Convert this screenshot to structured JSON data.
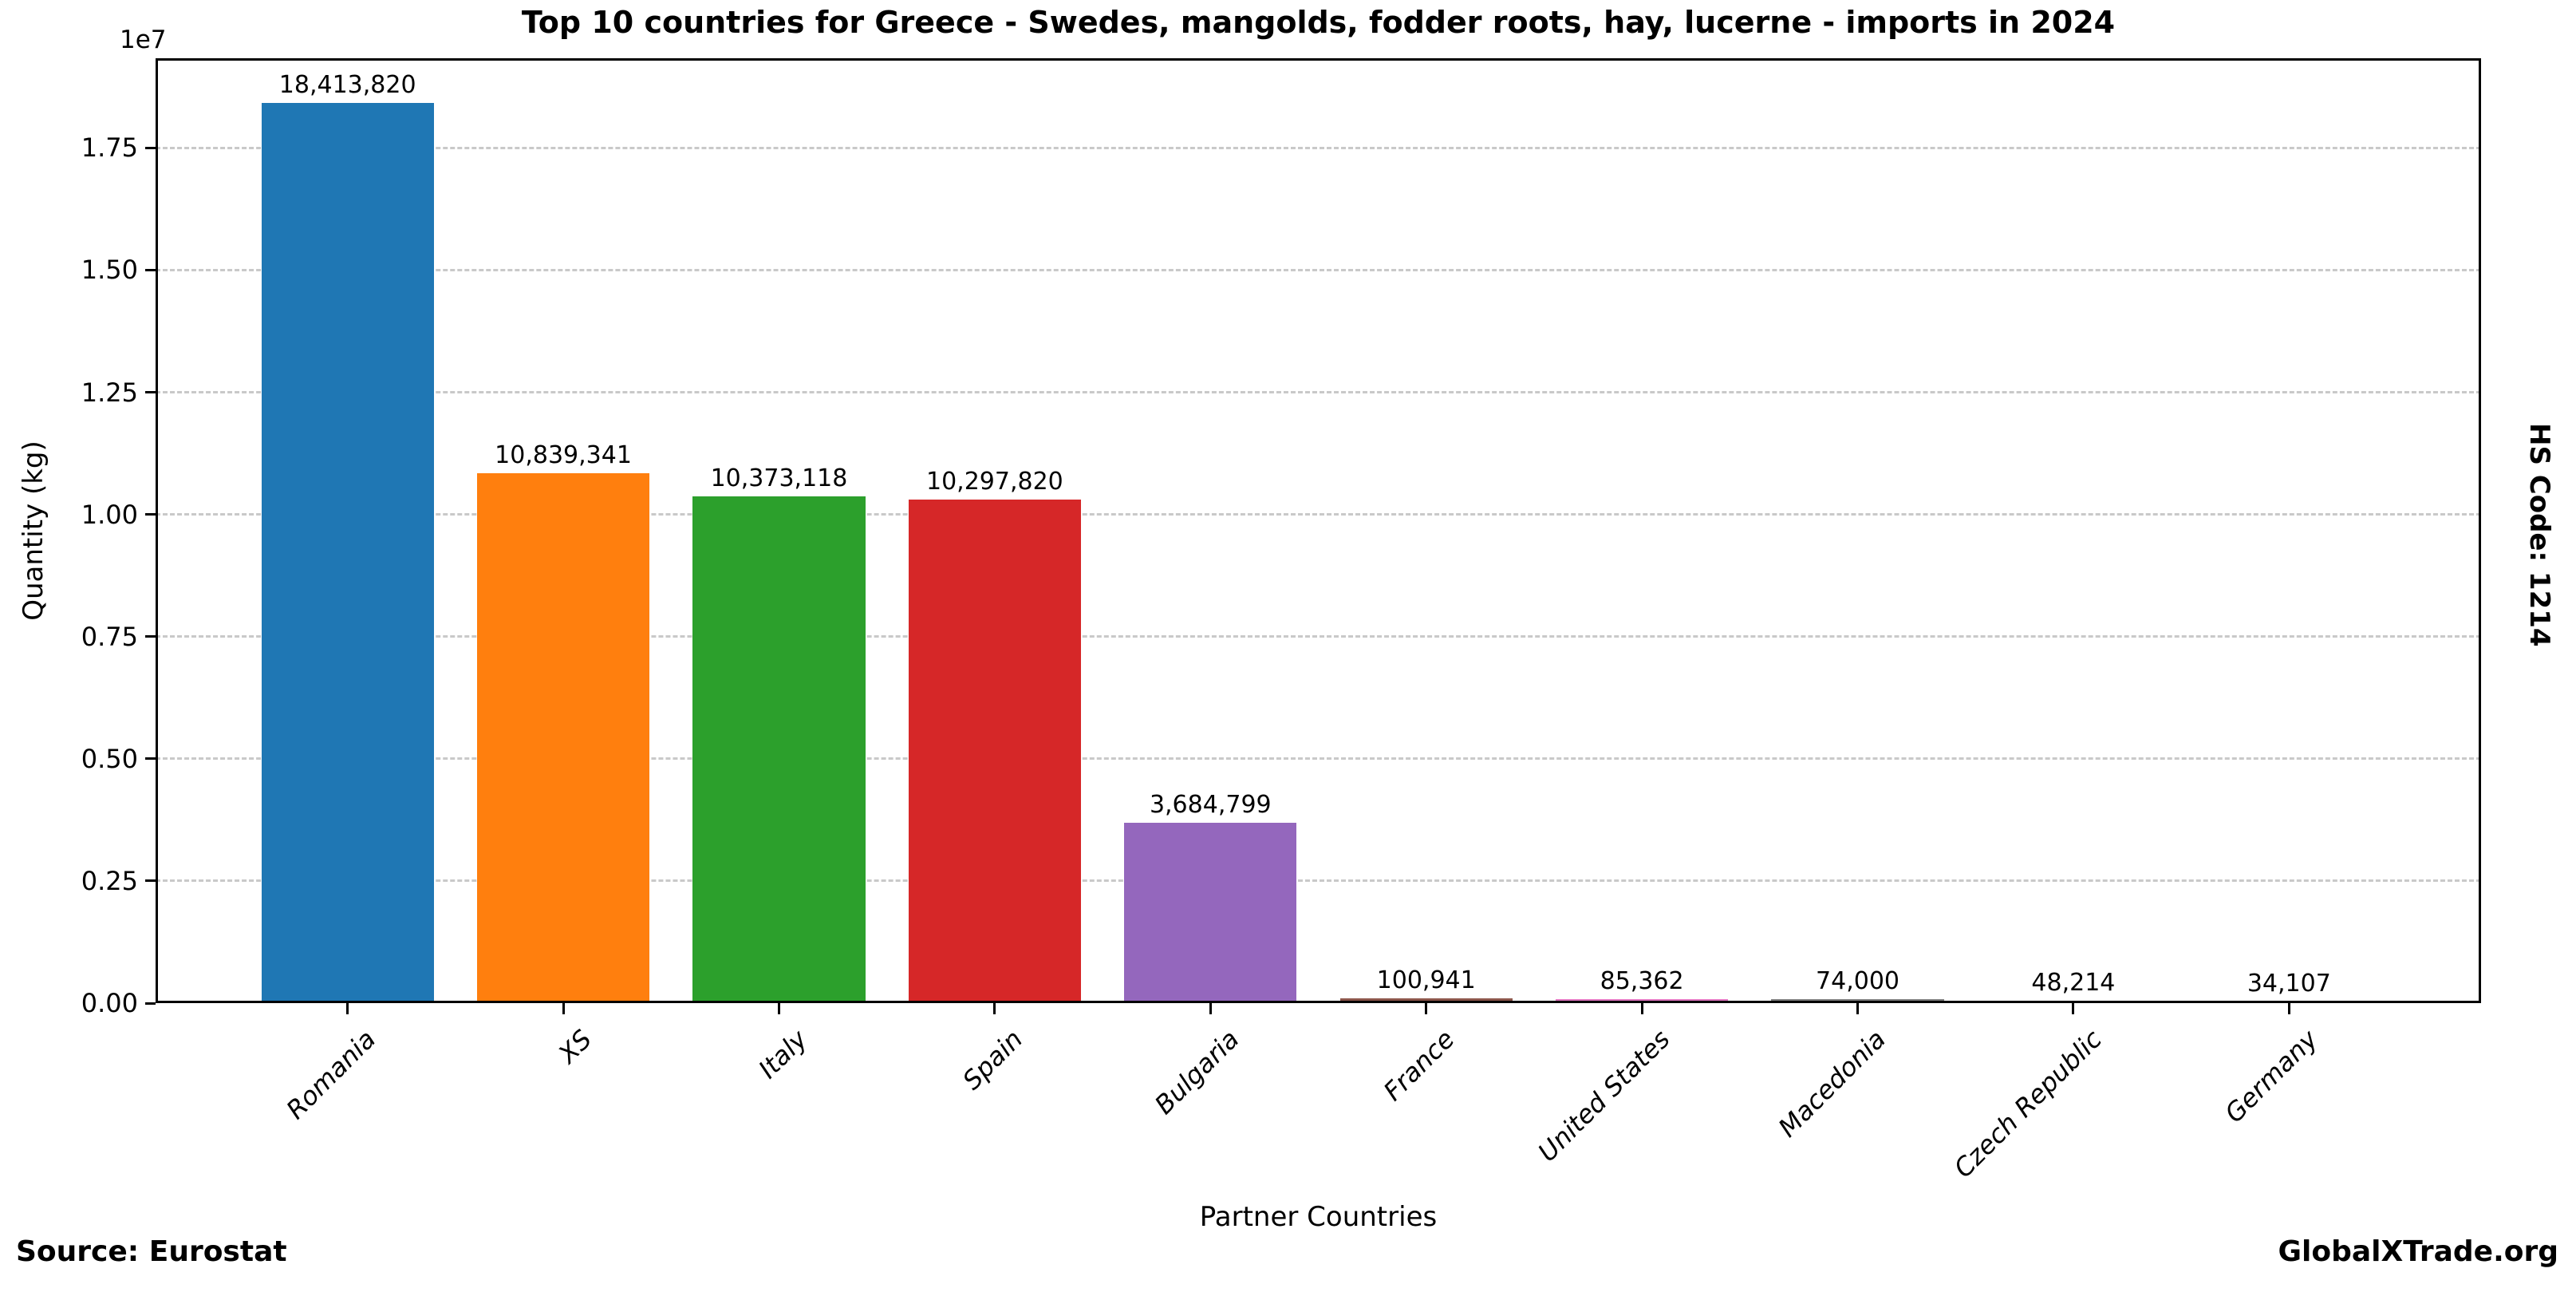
{
  "chart_data": {
    "type": "bar",
    "title": "Top 10 countries for Greece - Swedes, mangolds, fodder roots, hay, lucerne - imports in 2024",
    "xlabel": "Partner Countries",
    "ylabel": "Quantity (kg)",
    "y_offset_text": "1e7",
    "categories": [
      "Romania",
      "XS",
      "Italy",
      "Spain",
      "Bulgaria",
      "France",
      "United States",
      "Macedonia",
      "Czech Republic",
      "Germany"
    ],
    "values": [
      18413820,
      10839341,
      10373118,
      10297820,
      3684799,
      100941,
      85362,
      74000,
      48214,
      34107
    ],
    "value_labels": [
      "18,413,820",
      "10,839,341",
      "10,373,118",
      "10,297,820",
      "3,684,799",
      "100,941",
      "85,362",
      "74,000",
      "48,214",
      "34,107"
    ],
    "bar_colors": [
      "#1f77b4",
      "#ff7f0e",
      "#2ca02c",
      "#d62728",
      "#9467bd",
      "#8c564b",
      "#e377c2",
      "#7f7f7f",
      "#bcbd22",
      "#17becf"
    ],
    "ylim": [
      0,
      19334511
    ],
    "yticks": [
      0,
      2500000,
      5000000,
      7500000,
      10000000,
      12500000,
      15000000,
      17500000
    ],
    "ytick_labels": [
      "0.00",
      "0.25",
      "0.50",
      "0.75",
      "1.00",
      "1.25",
      "1.50",
      "1.75"
    ],
    "grid": {
      "axis": "y",
      "style": "dashed",
      "color": "#c9c9c9"
    },
    "legend": "none"
  },
  "footer": {
    "source": "Source: Eurostat",
    "brand": "GlobalXTrade.org"
  },
  "side_note": {
    "hs_code": "HS Code: 1214"
  }
}
